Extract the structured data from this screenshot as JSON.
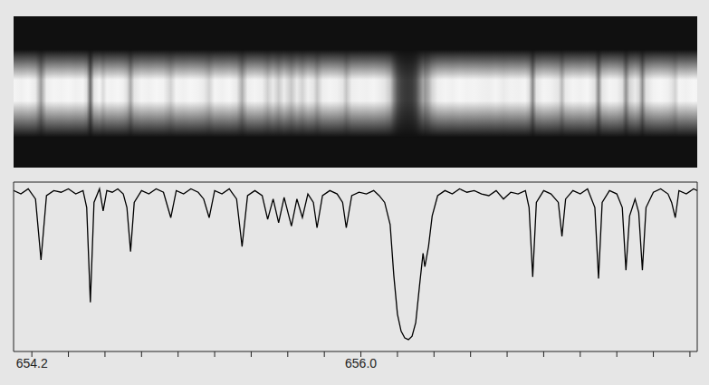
{
  "chart_data": {
    "type": "line",
    "color": "#000000",
    "grid": false,
    "tick_labels": "x",
    "xlim": [
      654.1,
      657.84
    ],
    "xticks": [
      654.2,
      {
        "value": 656,
        "label": "656.0"
      }
    ],
    "minor_xticks": [
      654.4,
      654.6,
      654.8,
      655.0,
      655.2,
      655.4,
      655.6,
      655.8,
      656.2,
      656.4,
      656.6,
      656.8,
      657.0,
      657.2,
      657.4,
      657.6,
      657.8
    ],
    "ylim": [
      0,
      1
    ],
    "yticks": [
      0.2,
      0.4,
      0.6,
      0.8
    ],
    "x": [
      654.1,
      654.14,
      654.18,
      654.22,
      654.25,
      654.28,
      654.32,
      654.36,
      654.4,
      654.44,
      654.48,
      654.5,
      654.52,
      654.54,
      654.57,
      654.59,
      654.61,
      654.64,
      654.67,
      654.7,
      654.72,
      654.74,
      654.76,
      654.8,
      654.84,
      654.88,
      654.92,
      654.96,
      654.99,
      655.03,
      655.07,
      655.11,
      655.14,
      655.17,
      655.2,
      655.24,
      655.28,
      655.32,
      655.35,
      655.38,
      655.42,
      655.46,
      655.49,
      655.52,
      655.55,
      655.58,
      655.62,
      655.65,
      655.68,
      655.71,
      655.74,
      655.76,
      655.79,
      655.83,
      655.87,
      655.9,
      655.92,
      655.95,
      655.99,
      656.03,
      656.07,
      656.1,
      656.13,
      656.16,
      656.18,
      656.2,
      656.22,
      656.24,
      656.26,
      656.28,
      656.3,
      656.32,
      656.34,
      656.35,
      656.37,
      656.39,
      656.42,
      656.46,
      656.5,
      656.54,
      656.58,
      656.62,
      656.66,
      656.7,
      656.74,
      656.78,
      656.82,
      656.86,
      656.9,
      656.92,
      656.94,
      656.96,
      657.0,
      657.04,
      657.08,
      657.1,
      657.12,
      657.16,
      657.2,
      657.24,
      657.28,
      657.3,
      657.32,
      657.36,
      657.4,
      657.43,
      657.45,
      657.47,
      657.5,
      657.52,
      657.54,
      657.56,
      657.6,
      657.64,
      657.68,
      657.7,
      657.72,
      657.74,
      657.78,
      657.82,
      657.84
    ],
    "values": [
      0.95,
      0.93,
      0.96,
      0.9,
      0.54,
      0.92,
      0.95,
      0.94,
      0.96,
      0.93,
      0.95,
      0.85,
      0.29,
      0.88,
      0.96,
      0.83,
      0.95,
      0.94,
      0.96,
      0.93,
      0.85,
      0.59,
      0.88,
      0.95,
      0.93,
      0.96,
      0.94,
      0.79,
      0.95,
      0.93,
      0.96,
      0.94,
      0.9,
      0.79,
      0.95,
      0.93,
      0.96,
      0.9,
      0.62,
      0.92,
      0.95,
      0.92,
      0.78,
      0.9,
      0.76,
      0.91,
      0.74,
      0.9,
      0.79,
      0.93,
      0.88,
      0.73,
      0.92,
      0.95,
      0.93,
      0.88,
      0.73,
      0.92,
      0.94,
      0.93,
      0.95,
      0.92,
      0.88,
      0.75,
      0.45,
      0.22,
      0.12,
      0.08,
      0.07,
      0.09,
      0.17,
      0.38,
      0.58,
      0.5,
      0.62,
      0.8,
      0.92,
      0.95,
      0.93,
      0.96,
      0.94,
      0.95,
      0.93,
      0.92,
      0.95,
      0.9,
      0.94,
      0.93,
      0.95,
      0.85,
      0.44,
      0.88,
      0.95,
      0.93,
      0.88,
      0.68,
      0.9,
      0.95,
      0.93,
      0.96,
      0.85,
      0.43,
      0.88,
      0.95,
      0.93,
      0.85,
      0.48,
      0.8,
      0.9,
      0.82,
      0.48,
      0.85,
      0.94,
      0.96,
      0.93,
      0.88,
      0.79,
      0.95,
      0.93,
      0.96,
      0.95
    ]
  }
}
